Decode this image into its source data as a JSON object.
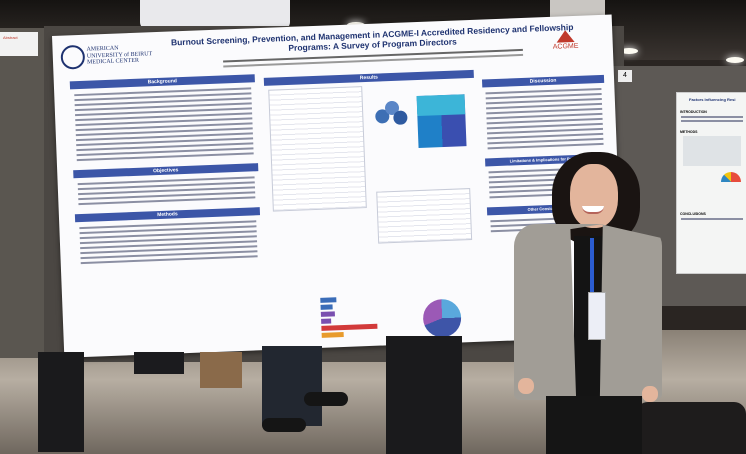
{
  "poster": {
    "title": "Burnout Screening, Prevention, and Management in ACGME-I Accredited Residency and Fellowship Programs: A Survey of Program Directors",
    "logo_text_1": "AMERICAN",
    "logo_text_2": "UNIVERSITY of BEIRUT",
    "logo_text_3": "MEDICAL CENTER",
    "acgme_label": "ACGME",
    "sections": {
      "background": "Background",
      "results": "Results",
      "objectives": "Objectives",
      "methods": "Methods",
      "discussion": "Discussion",
      "limitations": "Limitations & Implications for Practice",
      "conclusion": "Other Considerations"
    }
  },
  "booth": {
    "number": "4"
  },
  "right_poster": {
    "title": "Factors Influencing Resi",
    "section_1": "INTRODUCTION",
    "section_2": "METHODS",
    "section_3": "CONCLUSIONS"
  },
  "left_sign": {
    "label": "Abstract"
  },
  "colors": {
    "poster_blue": "#3c56a8",
    "title_blue": "#1e3270",
    "jacket_gray": "#a19d96"
  }
}
